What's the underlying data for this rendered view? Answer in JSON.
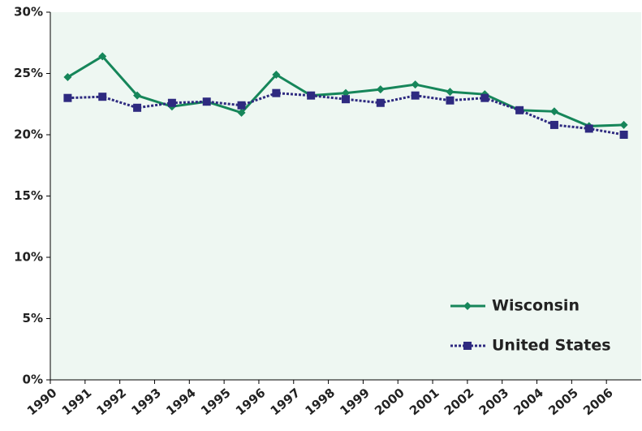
{
  "chart_data": {
    "type": "line",
    "categories": [
      "1990",
      "1991",
      "1992",
      "1993",
      "1994",
      "1995",
      "1996",
      "1997",
      "1998",
      "1999",
      "2000",
      "2001",
      "2002",
      "2003",
      "2004",
      "2005",
      "2006"
    ],
    "series": [
      {
        "name": "Wisconsin",
        "color": "#16865a",
        "style": "solid",
        "marker": "diamond",
        "values": [
          24.7,
          26.4,
          23.2,
          22.3,
          22.7,
          21.8,
          24.9,
          23.2,
          23.4,
          23.7,
          24.1,
          23.5,
          23.3,
          22.0,
          21.9,
          20.7,
          20.8
        ]
      },
      {
        "name": "United States",
        "color": "#2e2a80",
        "style": "dotted",
        "marker": "square",
        "values": [
          23.0,
          23.1,
          22.2,
          22.6,
          22.7,
          22.4,
          23.4,
          23.2,
          22.9,
          22.6,
          23.2,
          22.8,
          23.0,
          22.0,
          20.8,
          20.5,
          20.0
        ]
      }
    ],
    "ylim": [
      0,
      30
    ],
    "yticks": [
      {
        "value": 0,
        "label": "0%"
      },
      {
        "value": 5,
        "label": "5%"
      },
      {
        "value": 10,
        "label": "10%"
      },
      {
        "value": 15,
        "label": "15%"
      },
      {
        "value": 20,
        "label": "20%"
      },
      {
        "value": 25,
        "label": "25%"
      },
      {
        "value": 30,
        "label": "30%"
      }
    ],
    "grid": false,
    "legend": "lower-right",
    "plot_background": "#eef7f2"
  }
}
